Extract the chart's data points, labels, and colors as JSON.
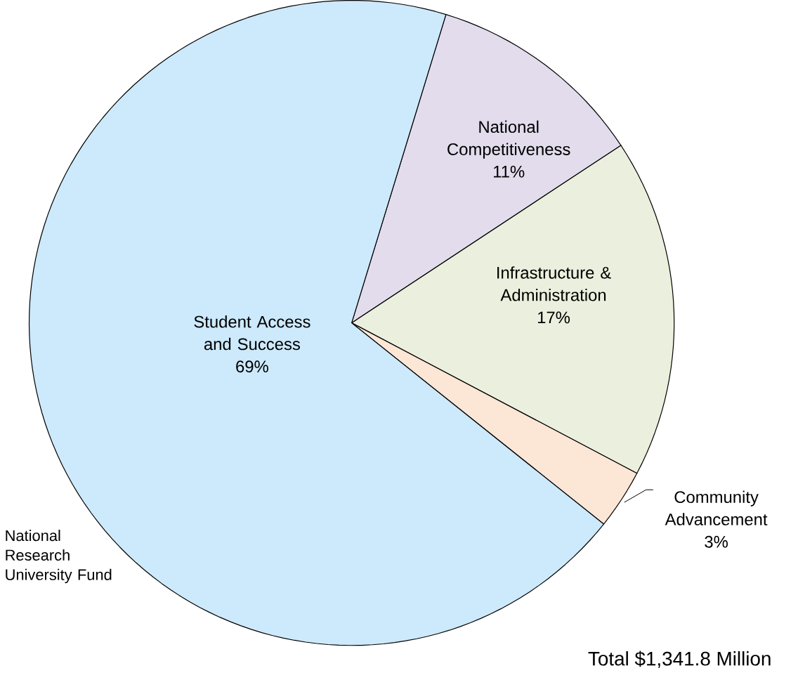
{
  "chart_data": {
    "type": "pie",
    "categories": [
      "National Competitiveness",
      "Infrastructure & Administration",
      "Community Advancement",
      "Student Access and Success"
    ],
    "values": [
      11,
      17,
      3,
      69
    ],
    "value_labels": [
      "11%",
      "17%",
      "3%",
      "69%"
    ],
    "colors": [
      "#e2dcec",
      "#ebefdd",
      "#fce6d6",
      "#cde9fc"
    ],
    "annotations": [
      "National Research University Fund",
      "Total  $1,341.8 Million"
    ]
  }
}
